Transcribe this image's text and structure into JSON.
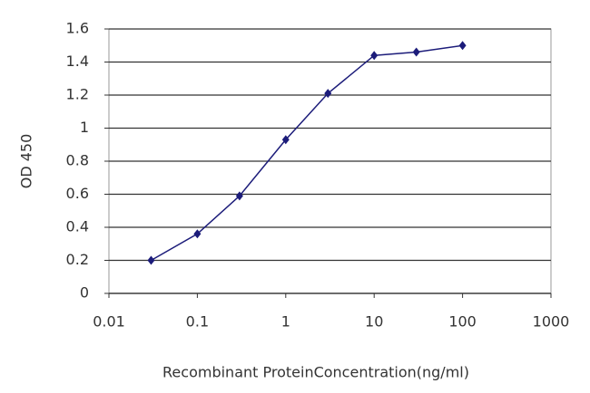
{
  "chart_data": {
    "type": "line",
    "x_label": "Recombinant ProteinConcentration(ng/ml)",
    "y_label": "OD 450",
    "x": [
      0.03,
      0.1,
      0.3,
      1,
      3,
      10,
      30,
      100
    ],
    "values": [
      0.2,
      0.36,
      0.59,
      0.93,
      1.21,
      1.44,
      1.46,
      1.5
    ],
    "color": "#1c1c7a",
    "xscale": "log",
    "xlim": [
      0.01,
      1000
    ],
    "xticks": [
      0.01,
      0.1,
      1,
      10,
      100,
      1000
    ],
    "ylim": [
      0,
      1.6
    ],
    "yticks": [
      0,
      0.2,
      0.4,
      0.6,
      0.8,
      1,
      1.2,
      1.4,
      1.6
    ],
    "grid": true
  }
}
